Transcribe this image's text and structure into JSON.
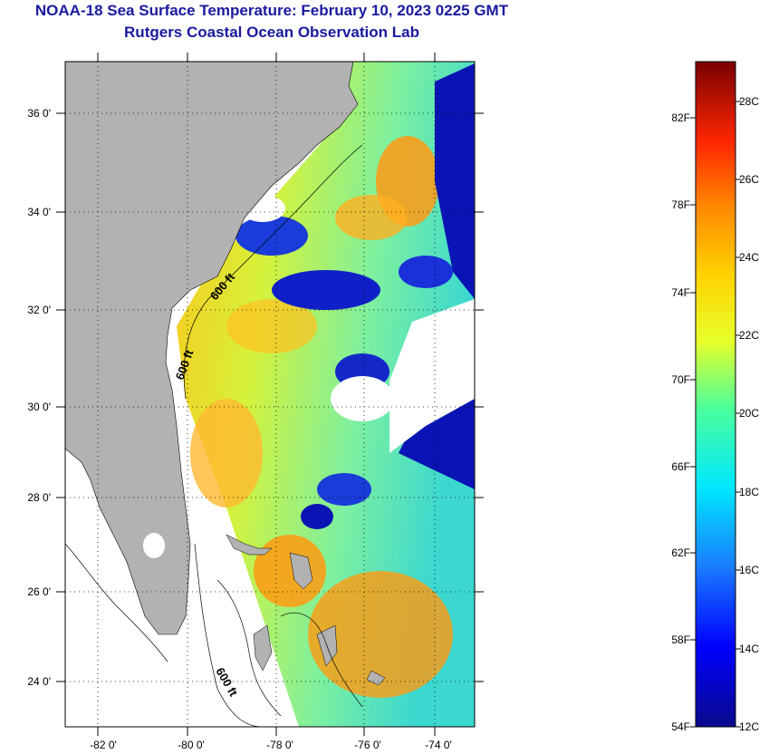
{
  "header": {
    "title_line1": "NOAA-18 Sea Surface Temperature:  February 10, 2023 0225 GMT",
    "title_line2": "Rutgers Coastal Ocean Observation Lab"
  },
  "map": {
    "lat_labels": [
      "36 0'",
      "34 0'",
      "32 0'",
      "30 0'",
      "28 0'",
      "26 0'",
      "24 0'"
    ],
    "lon_labels": [
      "-82 0'",
      "-80 0'",
      "-78 0'",
      "-76 0'",
      "-74 0'"
    ],
    "contour_labels": [
      "600 ft",
      "600 ft",
      "600 ft"
    ],
    "lon_range": [
      -83,
      -73
    ],
    "lat_range": [
      23,
      37
    ],
    "colors": {
      "land": "#b2b2b2",
      "no_data": "#ffffff"
    }
  },
  "colorbar": {
    "fahrenheit_labels": [
      "82F",
      "78F",
      "74F",
      "70F",
      "66F",
      "62F",
      "58F",
      "54F"
    ],
    "celsius_labels": [
      "28C",
      "26C",
      "24C",
      "22C",
      "20C",
      "18C",
      "16C",
      "14C",
      "12C"
    ],
    "range_c": [
      12,
      29
    ]
  }
}
